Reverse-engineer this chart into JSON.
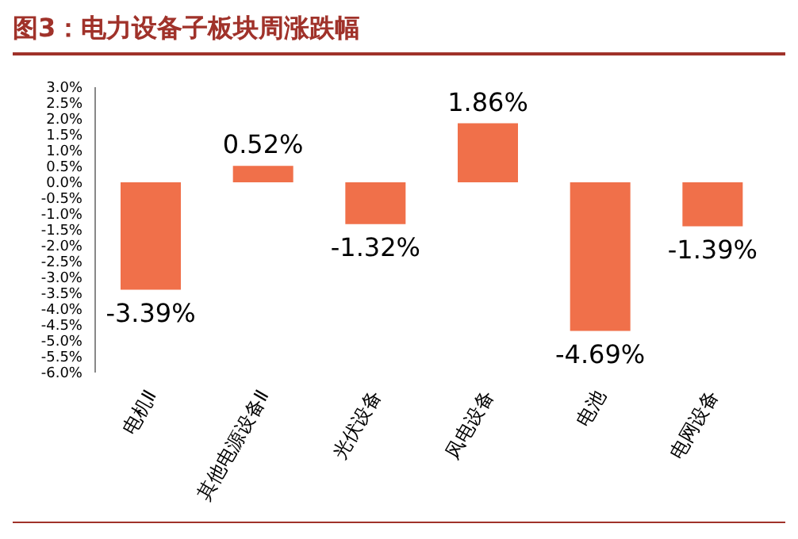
{
  "chart_data": {
    "type": "bar",
    "title": "图3：电力设备子板块周涨跌幅",
    "categories": [
      "电机Ⅱ",
      "其他电源设备Ⅱ",
      "光伏设备",
      "风电设备",
      "电池",
      "电网设备"
    ],
    "values": [
      -3.39,
      0.52,
      -1.32,
      1.86,
      -4.69,
      -1.39
    ],
    "value_labels": [
      "-3.39%",
      "0.52%",
      "-1.32%",
      "1.86%",
      "-4.69%",
      "-1.39%"
    ],
    "color": "#f0704a",
    "ylim": [
      -6,
      3
    ],
    "yticks": [
      {
        "value": 3,
        "label": "3.0%"
      },
      {
        "value": 2.5,
        "label": "2.5%"
      },
      {
        "value": 2,
        "label": "2.0%"
      },
      {
        "value": 1.5,
        "label": "1.5%"
      },
      {
        "value": 1,
        "label": "1.0%"
      },
      {
        "value": 0.5,
        "label": "0.5%"
      },
      {
        "value": 0,
        "label": "0.0%"
      },
      {
        "value": -0.5,
        "label": "-0.5%"
      },
      {
        "value": -1,
        "label": "-1.0%"
      },
      {
        "value": -1.5,
        "label": "-1.5%"
      },
      {
        "value": -2,
        "label": "-2.0%"
      },
      {
        "value": -2.5,
        "label": "-2.5%"
      },
      {
        "value": -3,
        "label": "-3.0%"
      },
      {
        "value": -3.5,
        "label": "-3.5%"
      },
      {
        "value": -4,
        "label": "-4.0%"
      },
      {
        "value": -4.5,
        "label": "-4.5%"
      },
      {
        "value": -5,
        "label": "-5.0%"
      },
      {
        "value": -5.5,
        "label": "-5.5%"
      },
      {
        "value": -6,
        "label": "-6.0%"
      }
    ],
    "grid": false,
    "legend": false
  }
}
